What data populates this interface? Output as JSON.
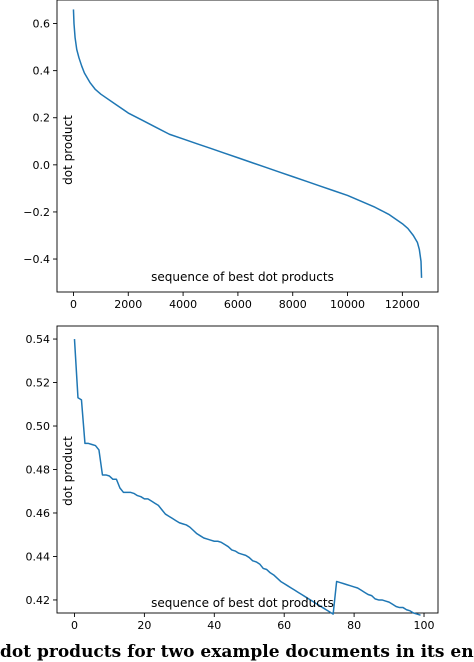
{
  "caption": "dot products for two example documents in its ent",
  "chart_data": [
    {
      "type": "line",
      "xlabel": "sequence of best dot products",
      "ylabel": "dot product",
      "xlim": [
        -600,
        13300
      ],
      "ylim": [
        -0.54,
        0.7
      ],
      "xticks": [
        0,
        2000,
        4000,
        6000,
        8000,
        10000,
        12000
      ],
      "xtick_labels": [
        "0",
        "2000",
        "4000",
        "6000",
        "8000",
        "10000",
        "12000"
      ],
      "yticks": [
        -0.4,
        -0.2,
        0.0,
        0.2,
        0.4,
        0.6
      ],
      "ytick_labels": [
        "−0.4",
        "−0.2",
        "0.0",
        "0.2",
        "0.4",
        "0.6"
      ],
      "grid": false,
      "color": "#1f77b4",
      "series": [
        {
          "x": [
            0,
            20,
            60,
            120,
            200,
            300,
            400,
            600,
            800,
            1000,
            1500,
            2000,
            2500,
            3000,
            3500,
            4000,
            4500,
            5000,
            5500,
            6000,
            6500,
            7000,
            7500,
            8000,
            8500,
            9000,
            9500,
            10000,
            10500,
            11000,
            11500,
            12000,
            12200,
            12400,
            12550,
            12620,
            12680,
            12700
          ],
          "y": [
            0.66,
            0.6,
            0.54,
            0.49,
            0.455,
            0.42,
            0.39,
            0.35,
            0.32,
            0.3,
            0.26,
            0.22,
            0.19,
            0.16,
            0.13,
            0.11,
            0.09,
            0.07,
            0.05,
            0.03,
            0.01,
            -0.01,
            -0.03,
            -0.05,
            -0.07,
            -0.09,
            -0.11,
            -0.13,
            -0.155,
            -0.18,
            -0.21,
            -0.25,
            -0.27,
            -0.3,
            -0.33,
            -0.36,
            -0.41,
            -0.48
          ]
        }
      ]
    },
    {
      "type": "line",
      "xlabel": "sequence of best dot products",
      "ylabel": "dot product",
      "xlim": [
        -5,
        104
      ],
      "ylim": [
        0.414,
        0.546
      ],
      "xticks": [
        0,
        20,
        40,
        60,
        80,
        100
      ],
      "xtick_labels": [
        "0",
        "20",
        "40",
        "60",
        "80",
        "100"
      ],
      "yticks": [
        0.42,
        0.44,
        0.46,
        0.48,
        0.5,
        0.52,
        0.54
      ],
      "ytick_labels": [
        "0.42",
        "0.44",
        "0.46",
        "0.48",
        "0.50",
        "0.52",
        "0.54"
      ],
      "grid": false,
      "color": "#1f77b4",
      "series": [
        {
          "x": [
            0,
            1,
            2,
            3,
            4,
            5,
            6,
            7,
            8,
            9,
            10,
            11,
            12,
            13,
            14,
            15,
            16,
            17,
            18,
            19,
            20,
            21,
            22,
            23,
            24,
            25,
            26,
            27,
            28,
            29,
            30,
            31,
            32,
            33,
            34,
            35,
            36,
            37,
            38,
            39,
            40,
            41,
            42,
            43,
            44,
            45,
            46,
            47,
            48,
            49,
            50,
            51,
            52,
            53,
            54,
            55,
            56,
            57,
            58,
            59,
            60,
            61,
            62,
            63,
            64,
            65,
            66,
            67,
            68,
            69,
            70,
            71,
            72,
            73,
            74,
            75,
            76,
            77,
            78,
            79,
            80,
            81,
            82,
            83,
            84,
            85,
            86,
            87,
            88,
            89,
            90,
            91,
            92,
            93,
            94,
            95,
            96,
            97,
            98,
            99
          ],
          "y": [
            0.54,
            0.513,
            0.512,
            0.492,
            0.492,
            0.4915,
            0.491,
            0.489,
            0.4775,
            0.4775,
            0.477,
            0.4755,
            0.4755,
            0.4715,
            0.4695,
            0.4695,
            0.4695,
            0.469,
            0.468,
            0.4675,
            0.4665,
            0.4665,
            0.4655,
            0.4645,
            0.4635,
            0.4615,
            0.4595,
            0.4585,
            0.4575,
            0.4565,
            0.4555,
            0.455,
            0.4545,
            0.4535,
            0.452,
            0.4505,
            0.4495,
            0.4485,
            0.448,
            0.4475,
            0.447,
            0.447,
            0.4465,
            0.4455,
            0.4445,
            0.443,
            0.4425,
            0.4415,
            0.441,
            0.4405,
            0.4395,
            0.438,
            0.4375,
            0.4365,
            0.4345,
            0.434,
            0.4325,
            0.4315,
            0.43,
            0.4285,
            0.4275,
            0.4265,
            0.4255,
            0.4245,
            0.4235,
            0.4225,
            0.4215,
            0.4205,
            0.4195,
            0.4185,
            0.4175,
            0.4165,
            0.4155,
            0.4145,
            0.4135,
            0.4295,
            0.4285,
            0.4275,
            0.4265,
            0.4255,
            0.4245,
            0.4235,
            0.4225,
            0.4215,
            0.4205,
            0.4195,
            0.4185,
            0.4175,
            0.4165,
            0.4155,
            0.4145,
            0.4135,
            0.4255,
            0.4245,
            0.4235,
            0.4225,
            0.4215,
            0.4205,
            0.4195,
            0.4185
          ]
        }
      ]
    }
  ]
}
